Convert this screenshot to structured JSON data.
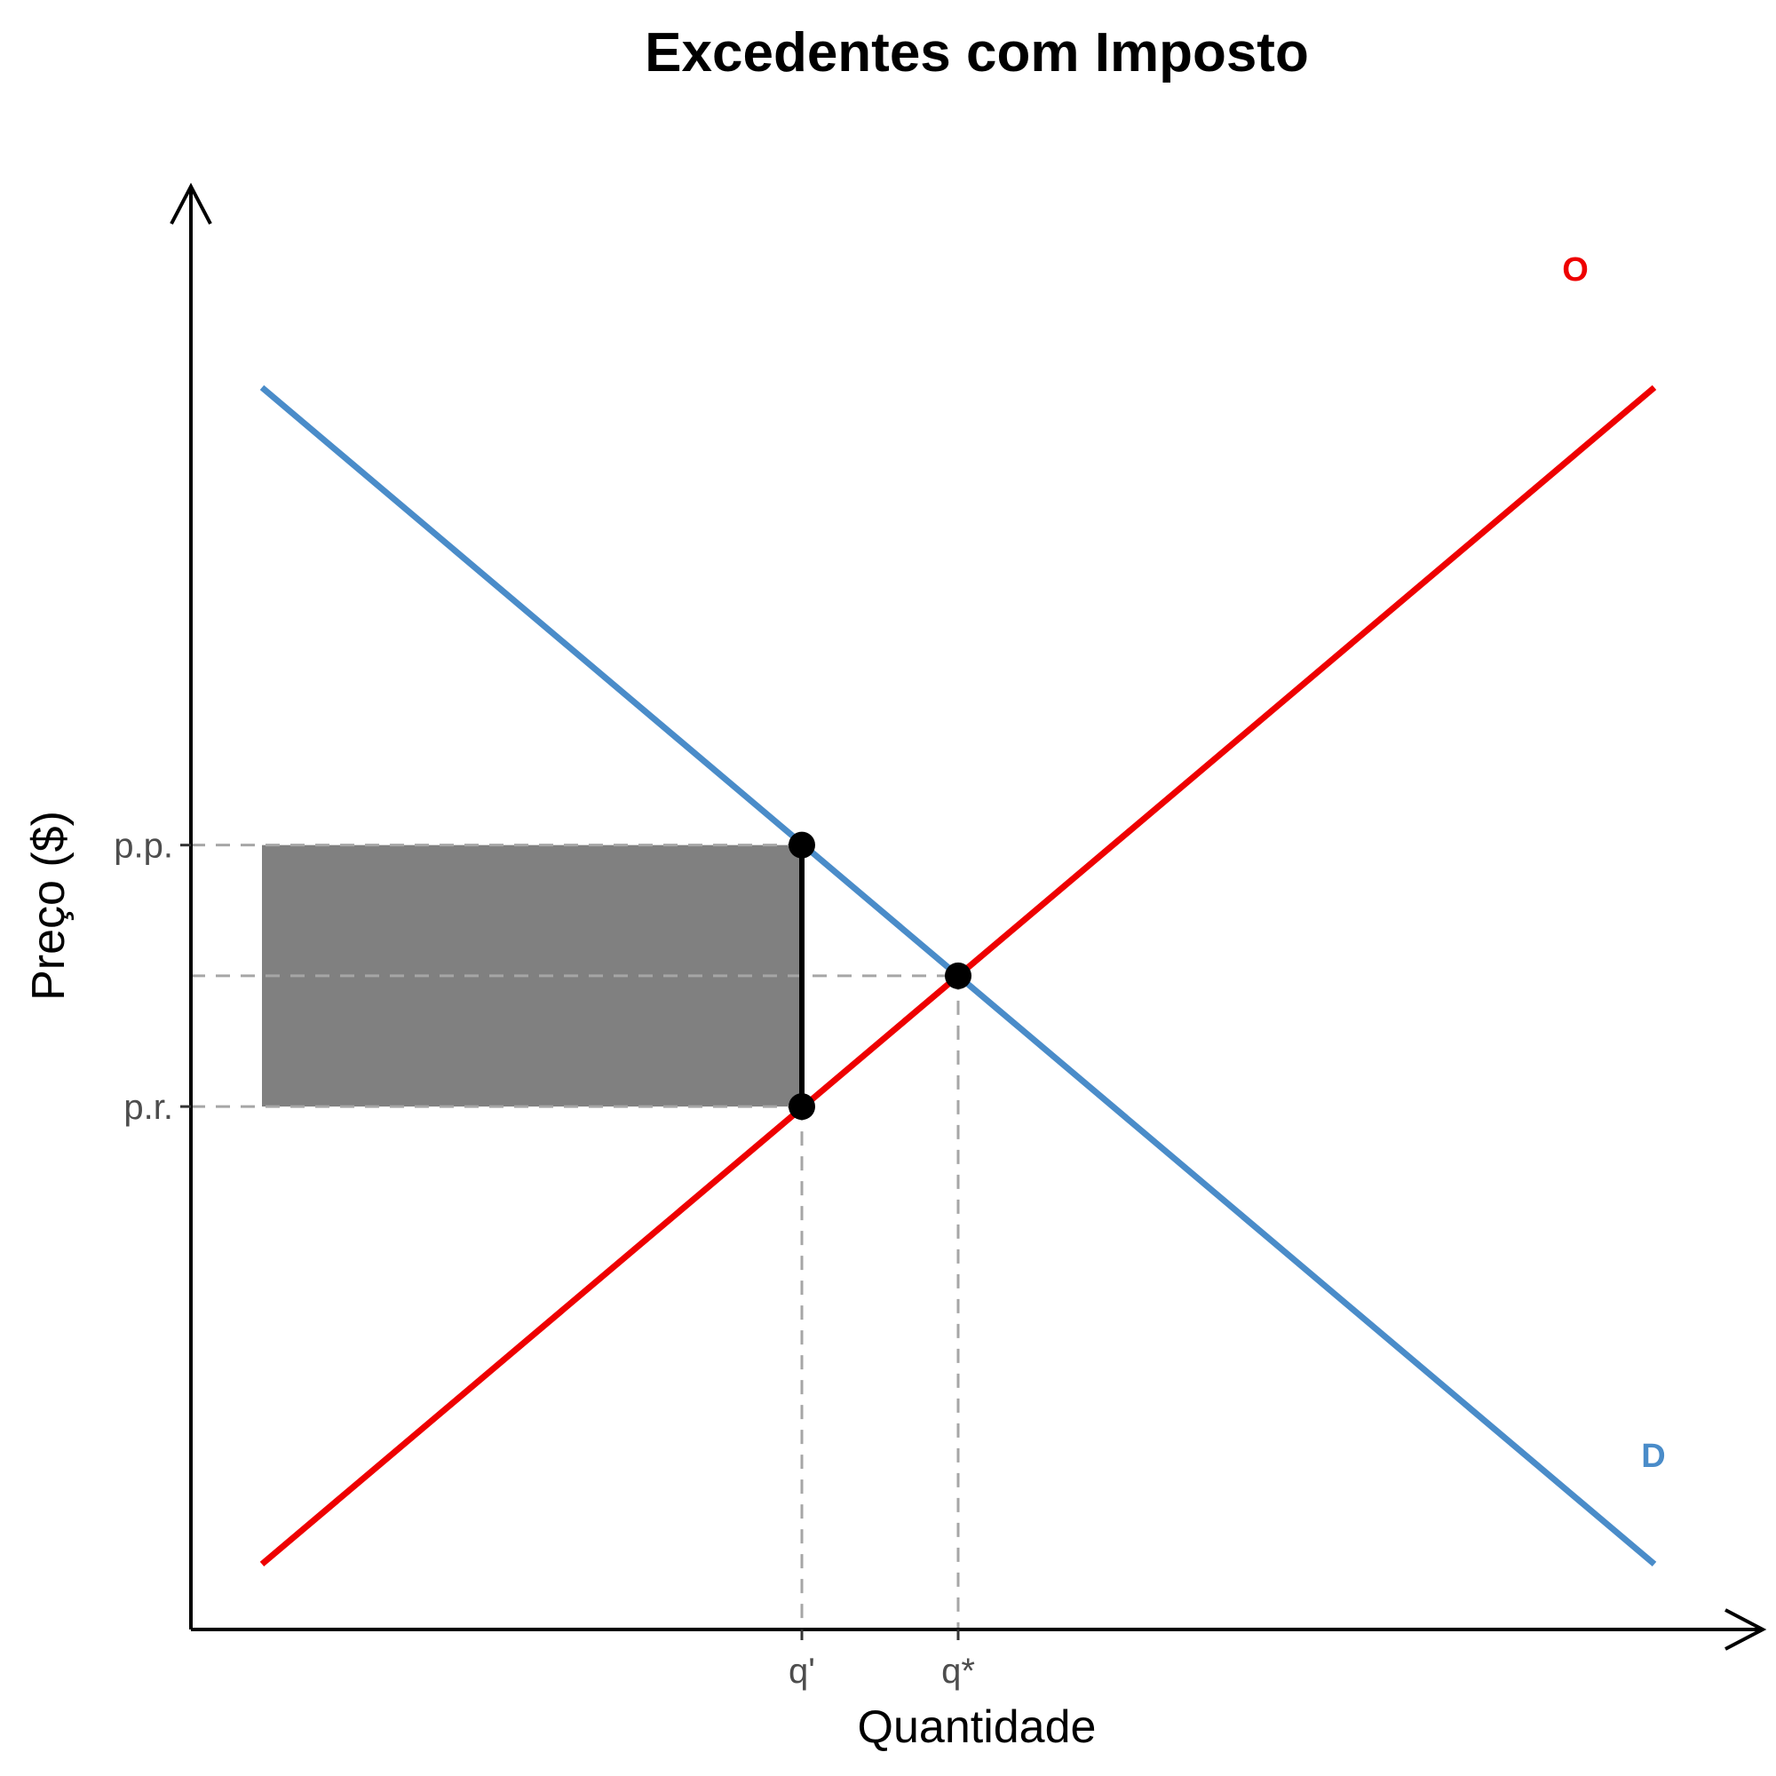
{
  "chart_data": {
    "type": "line",
    "title": "Excedentes com Imposto",
    "xlabel": "Quantidade",
    "ylabel": "Preço ($)",
    "xlim": [
      0,
      11
    ],
    "ylim": [
      0,
      10
    ],
    "grid": false,
    "colors": {
      "demand": "#4a8cc9",
      "supply": "#ee0000",
      "shade": "#808080",
      "guide": "#a6a6a6"
    },
    "series": [
      {
        "name": "D",
        "x": [
          0.5,
          10.3
        ],
        "y": [
          9.5,
          0.5
        ]
      },
      {
        "name": "O",
        "x": [
          0.5,
          10.3
        ],
        "y": [
          0.5,
          9.5
        ]
      }
    ],
    "x_ticks": [
      {
        "label": "q'",
        "value": 4.3
      },
      {
        "label": "q*",
        "value": 5.4
      }
    ],
    "y_ticks": [
      {
        "label": "p.p.",
        "value": 6
      },
      {
        "label": "p.r.",
        "value": 4
      }
    ],
    "equilibrium": {
      "x": 5.4,
      "y": 5
    },
    "tax_points": [
      {
        "x": 4.3,
        "y": 6
      },
      {
        "x": 4.3,
        "y": 4
      }
    ],
    "tax_revenue_area": {
      "x0": 0.5,
      "x1": 4.3,
      "y0": 4,
      "y1": 6
    }
  }
}
